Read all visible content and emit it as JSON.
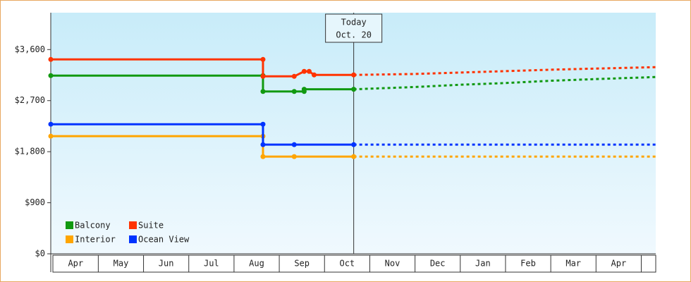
{
  "chart_data": {
    "type": "line",
    "xlim": [
      -0.05,
      13.32
    ],
    "xticks": [
      {
        "value": 0.5,
        "label": "Apr"
      },
      {
        "value": 1.5,
        "label": "May"
      },
      {
        "value": 2.5,
        "label": "Jun"
      },
      {
        "value": 3.5,
        "label": "Jul"
      },
      {
        "value": 4.5,
        "label": "Aug"
      },
      {
        "value": 5.5,
        "label": "Sep"
      },
      {
        "value": 6.5,
        "label": "Oct"
      },
      {
        "value": 7.5,
        "label": "Nov"
      },
      {
        "value": 8.5,
        "label": "Dec"
      },
      {
        "value": 9.5,
        "label": "Jan"
      },
      {
        "value": 10.5,
        "label": "Feb"
      },
      {
        "value": 11.5,
        "label": "Mar"
      },
      {
        "value": 12.5,
        "label": "Apr"
      }
    ],
    "ylim": [
      0,
      4250
    ],
    "yticks": [
      {
        "value": 0,
        "label": "$0"
      },
      {
        "value": 900,
        "label": "$900"
      },
      {
        "value": 1800,
        "label": "$1,800"
      },
      {
        "value": 2700,
        "label": "$2,700"
      },
      {
        "value": 3600,
        "label": "$3,600"
      }
    ],
    "annotation": {
      "x": 6.645,
      "lines": [
        "Today",
        "Oct. 20"
      ]
    },
    "series": [
      {
        "name": "Balcony",
        "color": "#119911",
        "x": [
          -0.05,
          4.64,
          4.64,
          5.33,
          5.55,
          5.55,
          6.645
        ],
        "values": [
          3141,
          3141,
          2861,
          2861,
          2861,
          2900,
          2900
        ],
        "forecast_x": [
          6.645,
          8,
          9,
          10,
          11,
          12,
          13.32
        ],
        "forecast_values": [
          2900,
          2940,
          2980,
          3010,
          3050,
          3080,
          3116
        ]
      },
      {
        "name": "Suite",
        "color": "#ff3300",
        "x": [
          -0.05,
          4.64,
          4.64,
          5.33,
          5.55,
          5.66,
          5.77,
          6.645
        ],
        "values": [
          3426,
          3426,
          3128,
          3128,
          3215,
          3215,
          3153,
          3153
        ],
        "forecast_x": [
          6.645,
          8,
          9,
          10,
          11,
          12,
          13.32
        ],
        "forecast_values": [
          3153,
          3170,
          3195,
          3220,
          3245,
          3265,
          3290
        ]
      },
      {
        "name": "Interior",
        "color": "#ffa500",
        "x": [
          -0.05,
          4.64,
          4.64,
          5.33,
          6.645
        ],
        "values": [
          2073,
          2073,
          1713,
          1713,
          1713
        ],
        "forecast_x": [
          6.645,
          13.32
        ],
        "forecast_values": [
          1713,
          1713
        ]
      },
      {
        "name": "Ocean View",
        "color": "#0033ff",
        "x": [
          -0.05,
          4.64,
          4.64,
          5.33,
          6.645
        ],
        "values": [
          2284,
          2284,
          1924,
          1924,
          1924
        ],
        "forecast_x": [
          6.645,
          13.32
        ],
        "forecast_values": [
          1924,
          1924
        ]
      }
    ]
  }
}
